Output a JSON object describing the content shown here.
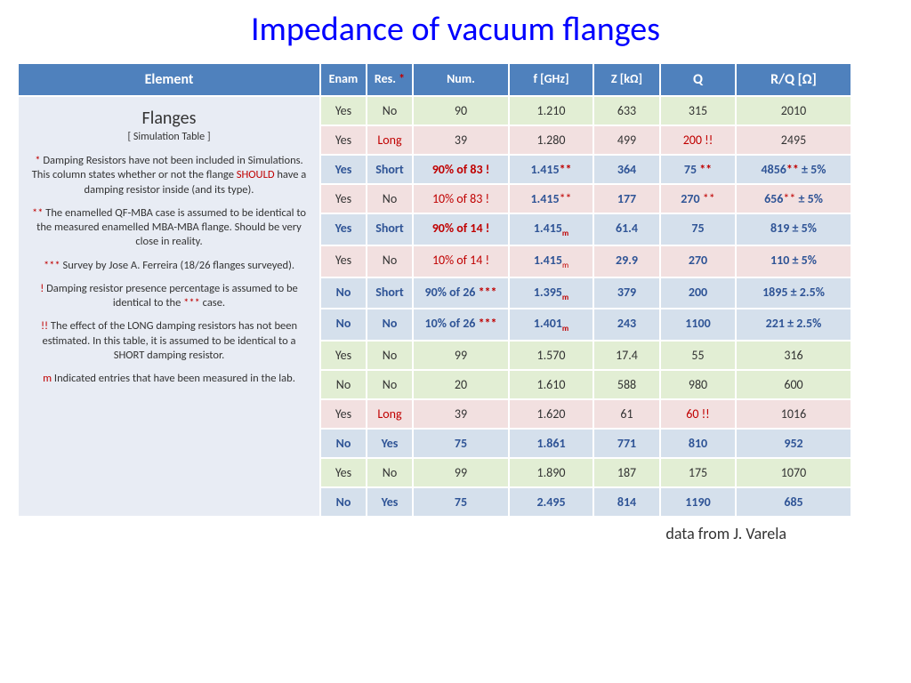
{
  "title": "Impedance of vacuum flanges",
  "headers": {
    "element": "Element",
    "enam": "Enam",
    "res": "Res.",
    "res_mark": "*",
    "num": "Num.",
    "f": "f [GHz]",
    "z": "Z [kΩ]",
    "q": "Q",
    "rq": "R/Q [Ω]"
  },
  "element": {
    "title": "Flanges",
    "subtitle": "[ Simulation Table ]",
    "note1a": "*",
    "note1b": " Damping Resistors have not been included in Simulations. This column states whether or not the flange ",
    "note1c": "SHOULD",
    "note1d": " have a damping resistor inside (and its type).",
    "note2a": "**",
    "note2b": " The enamelled QF-MBA case is assumed to be identical to the measured enamelled MBA-MBA flange. Should be very close in reality.",
    "note3a": "***",
    "note3b": " Survey by Jose A. Ferreira (18/26 flanges surveyed).",
    "note4a": "!",
    "note4b": " Damping resistor presence percentage is assumed to be identical to the ",
    "note4c": "***",
    "note4d": " case.",
    "note5a": "!!",
    "note5b": " The effect of the LONG damping resistors has not been estimated. In this table, it is assumed to be identical to a SHORT damping resistor.",
    "note6a": "m",
    "note6b": " Indicated entries that have been measured in the lab."
  },
  "rows": [
    {
      "style": "green",
      "enam": "Yes",
      "res": "No",
      "num": "90",
      "f": "1.210",
      "z": "633",
      "q": "315",
      "rq": "2010"
    },
    {
      "style": "pink",
      "enam": "Yes",
      "res": "Long",
      "res_red": true,
      "num": "39",
      "f": "1.280",
      "z": "499",
      "q": "200 !!",
      "q_red": true,
      "rq": "2495"
    },
    {
      "style": "blue",
      "enam": "Yes",
      "res": "Short",
      "num": "90% of 83 !",
      "num_red": true,
      "f": "1.415",
      "f_mark": "**",
      "z": "364",
      "q": "75 ",
      "q_mark": "**",
      "rq": "4856",
      "rq_mark": "**",
      "rq_suffix": " ± 5%"
    },
    {
      "style": "pink",
      "enam": "Yes",
      "res": "No",
      "num": "10% of 83 !",
      "num_red": true,
      "f": "1.415",
      "f_mark": "**",
      "f_blue": true,
      "z": "177",
      "z_blue": true,
      "q": "270 ",
      "q_mark": "**",
      "q_blue": true,
      "rq": "656",
      "rq_mark": "**",
      "rq_suffix": " ± 5%",
      "rq_blue": true
    },
    {
      "style": "blue",
      "enam": "Yes",
      "res": "Short",
      "num": "90% of 14 !",
      "num_red": true,
      "f": "1.415",
      "f_sub": "m",
      "z": "61.4",
      "q": "75",
      "rq": "819 ± 5%"
    },
    {
      "style": "pink",
      "enam": "Yes",
      "res": "No",
      "num": "10% of 14 !",
      "num_red": true,
      "f": "1.415",
      "f_sub": "m",
      "f_blue": true,
      "z": "29.9",
      "z_blue": true,
      "q": "270",
      "q_blue": true,
      "rq": "110 ± 5%",
      "rq_blue": true
    },
    {
      "style": "blue",
      "enam": "No",
      "res": "Short",
      "num": "90% of 26 ",
      "num_mark": "***",
      "f": "1.395",
      "f_sub": "m",
      "z": "379",
      "q": "200",
      "rq": "1895 ± 2.5%"
    },
    {
      "style": "blue",
      "enam": "No",
      "res": "No",
      "num": "10% of 26 ",
      "num_mark": "***",
      "f": "1.401",
      "f_sub": "m",
      "z": "243",
      "q": "1100",
      "rq": "221 ± 2.5%"
    },
    {
      "style": "green",
      "enam": "Yes",
      "res": "No",
      "num": "99",
      "f": "1.570",
      "z": "17.4",
      "q": "55",
      "rq": "316"
    },
    {
      "style": "green",
      "enam": "No",
      "res": "No",
      "num": "20",
      "f": "1.610",
      "z": "588",
      "q": "980",
      "rq": "600"
    },
    {
      "style": "pink",
      "enam": "Yes",
      "res": "Long",
      "res_red": true,
      "num": "39",
      "f": "1.620",
      "z": "61",
      "q": "60 !!",
      "q_red": true,
      "rq": "1016"
    },
    {
      "style": "blue",
      "enam": "No",
      "res": "Yes",
      "num": "75",
      "f": "1.861",
      "z": "771",
      "q": "810",
      "rq": "952"
    },
    {
      "style": "green",
      "enam": "Yes",
      "res": "No",
      "num": "99",
      "f": "1.890",
      "z": "187",
      "q": "175",
      "rq": "1070"
    },
    {
      "style": "blue",
      "enam": "No",
      "res": "Yes",
      "num": "75",
      "f": "2.495",
      "z": "814",
      "q": "1190",
      "rq": "685"
    }
  ],
  "footer": "data from J. Varela",
  "colors": {
    "header_bg": "#4f81bd",
    "green_bg": "#e2eed4",
    "pink_bg": "#f2e0e0",
    "blue_bg": "#d5e0ec",
    "element_bg": "#e8ecf4",
    "title_color": "#0000ff",
    "red": "#c00000",
    "blue_text": "#2f5496"
  }
}
